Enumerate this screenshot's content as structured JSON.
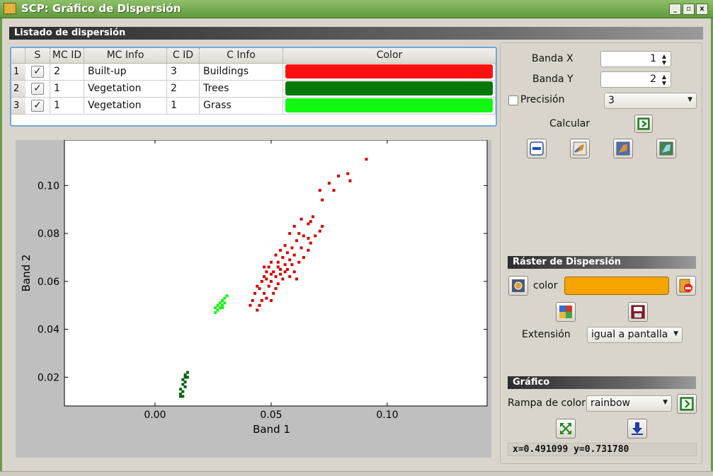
{
  "window": {
    "title": "SCP: Gráfico de Dispersión",
    "minimize_label": "_",
    "maximize_label": "▫",
    "close_label": "x"
  },
  "list_section": {
    "title": "Listado de dispersión",
    "columns": [
      "S",
      "MC ID",
      "MC Info",
      "C ID",
      "C Info",
      "Color"
    ],
    "rows": [
      {
        "num": "1",
        "checked": true,
        "mc_id": "2",
        "mc_info": "Built-up",
        "c_id": "3",
        "c_info": "Buildings",
        "color": "#ff1010"
      },
      {
        "num": "2",
        "checked": true,
        "mc_id": "1",
        "mc_info": "Vegetation",
        "c_id": "2",
        "c_info": "Trees",
        "color": "#077807"
      },
      {
        "num": "3",
        "checked": true,
        "mc_id": "1",
        "mc_info": "Vegetation",
        "c_id": "1",
        "c_info": "Grass",
        "color": "#12f712"
      }
    ]
  },
  "controls": {
    "band_x_label": "Banda X",
    "band_x_value": "1",
    "band_y_label": "Banda Y",
    "band_y_value": "2",
    "precision_label": "Precisión",
    "precision_value": "3",
    "calculate_label": "Calcular"
  },
  "raster_section": {
    "title": "Ráster de Dispersión",
    "color_label": "color",
    "color_value": "#f5a400",
    "extent_label": "Extensión",
    "extent_value": "igual a pantalla"
  },
  "graph_section": {
    "title": "Gráfico",
    "ramp_label": "Rampa de color",
    "ramp_value": "rainbow",
    "coordinates": "x=0.491099 y=0.731780"
  },
  "chart_data": {
    "type": "scatter",
    "xlabel": "Band 1",
    "ylabel": "Band 2",
    "xlim": [
      -0.039,
      0.143
    ],
    "ylim": [
      0.008,
      0.119
    ],
    "xticks": [
      0.0,
      0.05,
      0.1
    ],
    "xtick_labels": [
      "0.00",
      "0.05",
      "0.10"
    ],
    "yticks": [
      0.02,
      0.04,
      0.06,
      0.08,
      0.1
    ],
    "ytick_labels": [
      "0.02",
      "0.04",
      "0.06",
      "0.08",
      "0.10"
    ],
    "series": [
      {
        "color": "#d40000",
        "points": [
          [
            0.091,
            0.111
          ],
          [
            0.083,
            0.105
          ],
          [
            0.079,
            0.104
          ],
          [
            0.075,
            0.101
          ],
          [
            0.084,
            0.102
          ],
          [
            0.077,
            0.098
          ],
          [
            0.071,
            0.098
          ],
          [
            0.072,
            0.094
          ],
          [
            0.068,
            0.087
          ],
          [
            0.067,
            0.085
          ],
          [
            0.072,
            0.083
          ],
          [
            0.063,
            0.086
          ],
          [
            0.066,
            0.084
          ],
          [
            0.06,
            0.083
          ],
          [
            0.062,
            0.08
          ],
          [
            0.064,
            0.079
          ],
          [
            0.058,
            0.08
          ],
          [
            0.061,
            0.077
          ],
          [
            0.066,
            0.078
          ],
          [
            0.059,
            0.074
          ],
          [
            0.056,
            0.075
          ],
          [
            0.063,
            0.074
          ],
          [
            0.057,
            0.072
          ],
          [
            0.054,
            0.073
          ],
          [
            0.06,
            0.071
          ],
          [
            0.055,
            0.07
          ],
          [
            0.052,
            0.071
          ],
          [
            0.058,
            0.069
          ],
          [
            0.053,
            0.068
          ],
          [
            0.056,
            0.067
          ],
          [
            0.05,
            0.068
          ],
          [
            0.049,
            0.066
          ],
          [
            0.054,
            0.065
          ],
          [
            0.051,
            0.064
          ],
          [
            0.057,
            0.065
          ],
          [
            0.048,
            0.064
          ],
          [
            0.052,
            0.062
          ],
          [
            0.055,
            0.061
          ],
          [
            0.047,
            0.062
          ],
          [
            0.05,
            0.06
          ],
          [
            0.053,
            0.059
          ],
          [
            0.046,
            0.06
          ],
          [
            0.049,
            0.058
          ],
          [
            0.045,
            0.057
          ],
          [
            0.052,
            0.057
          ],
          [
            0.051,
            0.055
          ],
          [
            0.047,
            0.055
          ],
          [
            0.044,
            0.058
          ],
          [
            0.043,
            0.055
          ],
          [
            0.048,
            0.053
          ],
          [
            0.05,
            0.052
          ],
          [
            0.046,
            0.052
          ],
          [
            0.042,
            0.052
          ],
          [
            0.045,
            0.05
          ],
          [
            0.041,
            0.05
          ],
          [
            0.044,
            0.048
          ],
          [
            0.061,
            0.061
          ],
          [
            0.06,
            0.064
          ],
          [
            0.062,
            0.068
          ],
          [
            0.058,
            0.062
          ],
          [
            0.064,
            0.07
          ],
          [
            0.066,
            0.073
          ],
          [
            0.067,
            0.076
          ],
          [
            0.069,
            0.079
          ],
          [
            0.071,
            0.081
          ],
          [
            0.053,
            0.066
          ],
          [
            0.056,
            0.064
          ],
          [
            0.059,
            0.067
          ],
          [
            0.048,
            0.061
          ],
          [
            0.047,
            0.066
          ],
          [
            0.05,
            0.063
          ],
          [
            0.054,
            0.063
          ]
        ]
      },
      {
        "color": "#12f712",
        "points": [
          [
            0.031,
            0.054
          ],
          [
            0.03,
            0.053
          ],
          [
            0.029,
            0.052
          ],
          [
            0.03,
            0.051
          ],
          [
            0.028,
            0.051
          ],
          [
            0.029,
            0.05
          ],
          [
            0.027,
            0.05
          ],
          [
            0.028,
            0.049
          ],
          [
            0.026,
            0.049
          ],
          [
            0.027,
            0.048
          ],
          [
            0.026,
            0.047
          ],
          [
            0.029,
            0.049
          ]
        ]
      },
      {
        "color": "#0a620a",
        "points": [
          [
            0.014,
            0.022
          ],
          [
            0.013,
            0.021
          ],
          [
            0.014,
            0.02
          ],
          [
            0.012,
            0.019
          ],
          [
            0.013,
            0.018
          ],
          [
            0.012,
            0.017
          ],
          [
            0.013,
            0.016
          ],
          [
            0.011,
            0.015
          ],
          [
            0.012,
            0.014
          ],
          [
            0.011,
            0.013
          ],
          [
            0.012,
            0.012
          ],
          [
            0.011,
            0.012
          ],
          [
            0.013,
            0.02
          ]
        ]
      }
    ]
  }
}
